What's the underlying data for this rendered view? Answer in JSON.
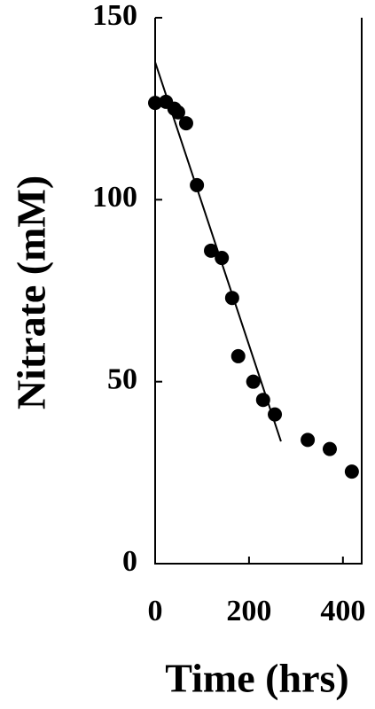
{
  "chart_data": {
    "type": "scatter",
    "x_label": "Time (hrs)",
    "y_label": "Nitrate (mM)",
    "x": [
      0,
      23,
      41,
      49,
      66,
      89,
      119,
      142,
      164,
      177,
      209,
      230,
      255,
      325,
      372,
      419
    ],
    "values": [
      126.6,
      126.9,
      125,
      124,
      121,
      104,
      86,
      84,
      73,
      57,
      50,
      45,
      41,
      34,
      31.5,
      25.3
    ],
    "color": "#000000",
    "fit_line": {
      "x": [
        0,
        268
      ],
      "values": [
        137.8,
        33.6
      ],
      "color": "#000000"
    },
    "xlim": [
      0,
      440
    ],
    "xticks": [
      0,
      200,
      400
    ],
    "ylim": [
      0,
      150
    ],
    "yticks": [
      0,
      50,
      100,
      150
    ]
  }
}
